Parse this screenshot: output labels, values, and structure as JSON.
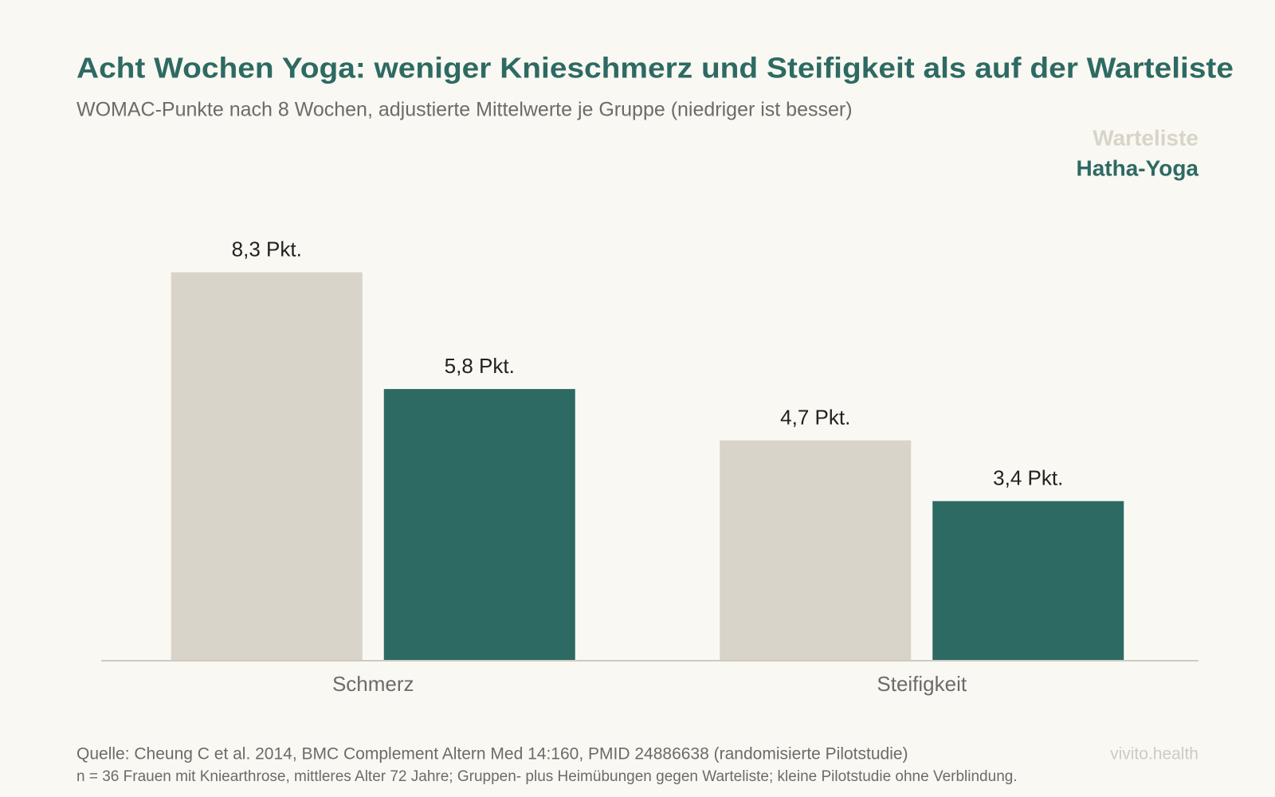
{
  "chart_data": {
    "type": "bar",
    "title": "Acht Wochen Yoga: weniger Knieschmerz und Steifigkeit als auf der Warteliste",
    "subtitle": "WOMAC-Punkte nach 8 Wochen, adjustierte Mittelwerte je Gruppe (niedriger ist besser)",
    "categories": [
      "Schmerz",
      "Steifigkeit"
    ],
    "series": [
      {
        "name": "Warteliste",
        "color": "#d8d4c9",
        "values": [
          8.3,
          4.7
        ],
        "value_labels": [
          "8,3 Pkt.",
          "4,7 Pkt."
        ]
      },
      {
        "name": "Hatha-Yoga",
        "color": "#2d6a63",
        "values": [
          5.8,
          3.4
        ],
        "value_labels": [
          "5,8 Pkt.",
          "3,4 Pkt."
        ]
      }
    ],
    "ylim": [
      0,
      10
    ],
    "legend": "top-right",
    "source": "Quelle: Cheung C et al. 2014, BMC Complement Altern Med 14:160, PMID 24886638 (randomisierte Pilotstudie)",
    "note": "n = 36 Frauen mit Kniearthrose, mittleres Alter 72 Jahre; Gruppen- plus Heimübungen gegen Warteliste; kleine Pilotstudie ohne Verblindung.",
    "brand": "vivito.health"
  }
}
